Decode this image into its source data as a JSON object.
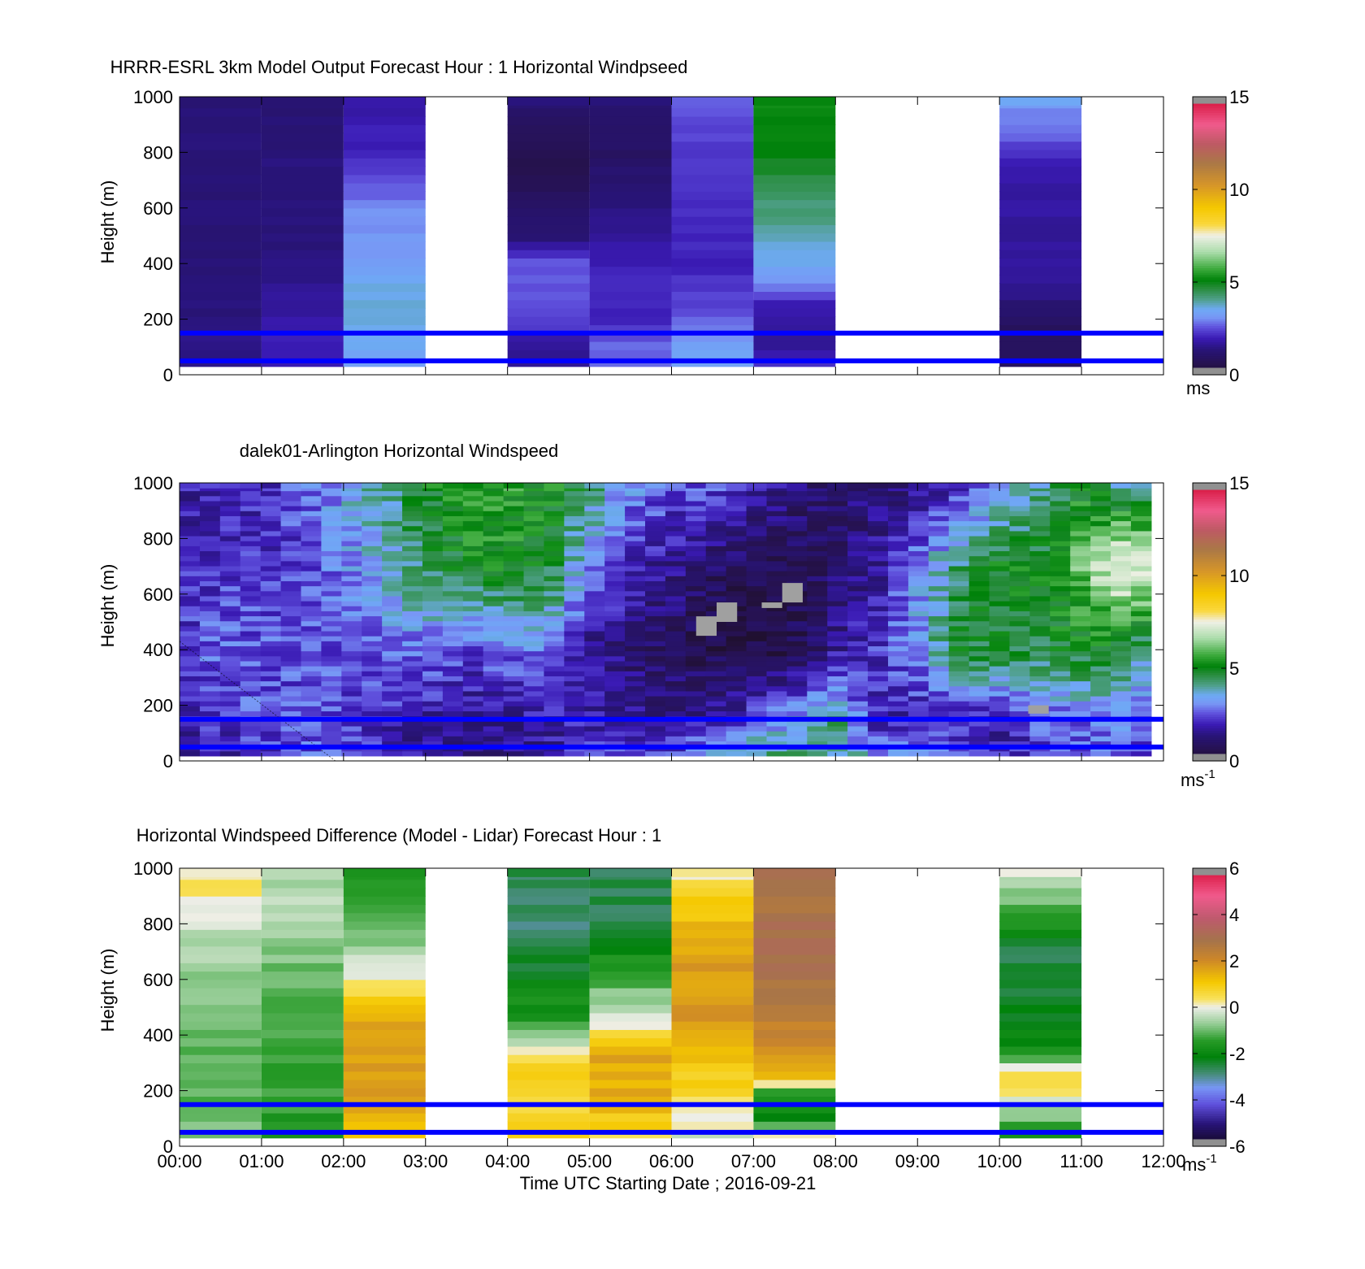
{
  "colors": {
    "overlay_lines": "#0000ff",
    "missing": "#a0a0a0"
  },
  "reference_heights_m": [
    50,
    150
  ],
  "x_axis": {
    "ticks": [
      "00:00",
      "01:00",
      "02:00",
      "03:00",
      "04:00",
      "05:00",
      "06:00",
      "07:00",
      "08:00",
      "09:00",
      "10:00",
      "11:00",
      "12:00"
    ],
    "label": "Time UTC  Starting Date ; 2016-09-21"
  },
  "chart_data": [
    {
      "type": "heatmap",
      "id": "model",
      "title": "HRRR-ESRL 3km Model Output   Forecast Hour : 1 Horizontal Windpseed",
      "ylabel": "Height (m)",
      "ylim": [
        0,
        1000
      ],
      "yticks": [
        "0",
        "200",
        "400",
        "600",
        "800",
        "1000"
      ],
      "xlim_hours": [
        0,
        12
      ],
      "colorbar": {
        "ticks": [
          "0",
          "5",
          "10",
          "15"
        ],
        "min": 0,
        "max": 15,
        "unit": "ms",
        "unit_sup": ""
      },
      "columns": [
        {
          "start": 0,
          "profile": [
            [
              0,
              1.2
            ],
            [
              50,
              1.5
            ],
            [
              150,
              1.4
            ],
            [
              300,
              1.3
            ],
            [
              1000,
              1.3
            ]
          ]
        },
        {
          "start": 1,
          "profile": [
            [
              0,
              1.8
            ],
            [
              50,
              2.0
            ],
            [
              200,
              1.8
            ],
            [
              400,
              1.4
            ],
            [
              1000,
              1.3
            ]
          ]
        },
        {
          "start": 2,
          "profile": [
            [
              0,
              2.5
            ],
            [
              50,
              3.4
            ],
            [
              300,
              3.7
            ],
            [
              400,
              3.2
            ],
            [
              600,
              3.0
            ],
            [
              800,
              2.0
            ],
            [
              1000,
              1.8
            ]
          ]
        },
        {
          "start": 4,
          "profile": [
            [
              0,
              1.5
            ],
            [
              100,
              1.6
            ],
            [
              200,
              2.5
            ],
            [
              400,
              2.6
            ],
            [
              500,
              1.3
            ],
            [
              700,
              0.6
            ],
            [
              900,
              0.8
            ],
            [
              1000,
              1.3
            ]
          ]
        },
        {
          "start": 5,
          "profile": [
            [
              0,
              2.6
            ],
            [
              100,
              2.8
            ],
            [
              200,
              2.0
            ],
            [
              350,
              2.2
            ],
            [
              500,
              1.6
            ],
            [
              800,
              1.0
            ],
            [
              1000,
              1.3
            ]
          ]
        },
        {
          "start": 6,
          "profile": [
            [
              0,
              3.2
            ],
            [
              100,
              3.4
            ],
            [
              200,
              2.6
            ],
            [
              400,
              2.0
            ],
            [
              800,
              2.3
            ],
            [
              1000,
              2.7
            ]
          ]
        },
        {
          "start": 7,
          "profile": [
            [
              0,
              2.6
            ],
            [
              100,
              1.6
            ],
            [
              250,
              1.9
            ],
            [
              350,
              3.2
            ],
            [
              450,
              3.7
            ],
            [
              600,
              4.2
            ],
            [
              800,
              5.0
            ],
            [
              1000,
              5.2
            ]
          ]
        },
        {
          "start": 10,
          "profile": [
            [
              0,
              0.8
            ],
            [
              200,
              0.9
            ],
            [
              300,
              1.6
            ],
            [
              750,
              1.8
            ],
            [
              850,
              2.6
            ],
            [
              950,
              3.0
            ],
            [
              1000,
              3.6
            ]
          ]
        }
      ]
    },
    {
      "type": "heatmap",
      "id": "lidar",
      "title": "dalek01-Arlington  Horizontal Windspeed",
      "ylabel": "Height (m)",
      "ylim": [
        0,
        1000
      ],
      "yticks": [
        "0",
        "200",
        "400",
        "600",
        "800",
        "1000"
      ],
      "xlim_hours": [
        0,
        12
      ],
      "colorbar": {
        "ticks": [
          "0",
          "5",
          "10",
          "15"
        ],
        "min": 0,
        "max": 15,
        "unit": "ms",
        "unit_sup": "-1"
      },
      "keyframes_hours": [
        0,
        0.5,
        1.0,
        1.5,
        2.0,
        2.5,
        3.0,
        3.5,
        4.0,
        4.5,
        5.0,
        5.5,
        6.0,
        6.5,
        7.0,
        7.5,
        8.0,
        8.5,
        9.0,
        9.5,
        10.0,
        10.5,
        11.0,
        11.5,
        11.85
      ],
      "keyframes": [
        [
          [
            0,
            1.5
          ],
          [
            150,
            2.0
          ],
          [
            400,
            2.2
          ],
          [
            700,
            2.0
          ],
          [
            1000,
            1.8
          ]
        ],
        [
          [
            0,
            1.8
          ],
          [
            150,
            2.2
          ],
          [
            400,
            2.8
          ],
          [
            700,
            2.2
          ],
          [
            1000,
            2.0
          ]
        ],
        [
          [
            0,
            2.0
          ],
          [
            150,
            2.6
          ],
          [
            400,
            2.6
          ],
          [
            700,
            2.2
          ],
          [
            1000,
            2.0
          ]
        ],
        [
          [
            0,
            2.6
          ],
          [
            150,
            2.5
          ],
          [
            400,
            2.4
          ],
          [
            700,
            2.4
          ],
          [
            1000,
            2.6
          ]
        ],
        [
          [
            0,
            2.8
          ],
          [
            150,
            2.4
          ],
          [
            400,
            2.6
          ],
          [
            700,
            3.0
          ],
          [
            1000,
            3.5
          ]
        ],
        [
          [
            0,
            2.2
          ],
          [
            150,
            2.0
          ],
          [
            400,
            2.8
          ],
          [
            700,
            3.6
          ],
          [
            1000,
            4.0
          ]
        ],
        [
          [
            0,
            1.4
          ],
          [
            150,
            1.8
          ],
          [
            400,
            2.8
          ],
          [
            700,
            4.5
          ],
          [
            1000,
            5.0
          ]
        ],
        [
          [
            0,
            1.2
          ],
          [
            150,
            1.6
          ],
          [
            400,
            2.4
          ],
          [
            700,
            5.0
          ],
          [
            1000,
            5.5
          ]
        ],
        [
          [
            0,
            1.3
          ],
          [
            150,
            1.6
          ],
          [
            400,
            2.8
          ],
          [
            700,
            5.2
          ],
          [
            1000,
            5.5
          ]
        ],
        [
          [
            0,
            1.6
          ],
          [
            150,
            1.8
          ],
          [
            400,
            3.0
          ],
          [
            700,
            5.0
          ],
          [
            1000,
            5.2
          ]
        ],
        [
          [
            0,
            2.4
          ],
          [
            150,
            2.0
          ],
          [
            400,
            1.6
          ],
          [
            700,
            2.8
          ],
          [
            1000,
            4.5
          ]
        ],
        [
          [
            0,
            2.6
          ],
          [
            150,
            1.6
          ],
          [
            400,
            1.2
          ],
          [
            700,
            2.0
          ],
          [
            1000,
            3.2
          ]
        ],
        [
          [
            0,
            2.6
          ],
          [
            150,
            1.4
          ],
          [
            400,
            0.8
          ],
          [
            700,
            1.6
          ],
          [
            1000,
            2.5
          ]
        ],
        [
          [
            0,
            4.5
          ],
          [
            150,
            1.6
          ],
          [
            400,
            0.6
          ],
          [
            700,
            1.0
          ],
          [
            1000,
            2.6
          ]
        ],
        [
          [
            0,
            4.8
          ],
          [
            150,
            2.4
          ],
          [
            400,
            0.5
          ],
          [
            700,
            0.7
          ],
          [
            1000,
            1.8
          ]
        ],
        [
          [
            0,
            4.2
          ],
          [
            150,
            3.4
          ],
          [
            400,
            0.6
          ],
          [
            700,
            0.8
          ],
          [
            1000,
            1.3
          ]
        ],
        [
          [
            0,
            4.0
          ],
          [
            150,
            4.2
          ],
          [
            400,
            1.6
          ],
          [
            700,
            1.0
          ],
          [
            1000,
            1.2
          ]
        ],
        [
          [
            0,
            3.2
          ],
          [
            150,
            2.0
          ],
          [
            400,
            2.2
          ],
          [
            700,
            1.6
          ],
          [
            1000,
            1.2
          ]
        ],
        [
          [
            0,
            3.6
          ],
          [
            150,
            1.8
          ],
          [
            400,
            3.2
          ],
          [
            700,
            3.0
          ],
          [
            1000,
            1.4
          ]
        ],
        [
          [
            0,
            2.4
          ],
          [
            150,
            2.0
          ],
          [
            400,
            4.8
          ],
          [
            700,
            4.2
          ],
          [
            1000,
            2.0
          ]
        ],
        [
          [
            0,
            2.0
          ],
          [
            150,
            1.8
          ],
          [
            400,
            4.8
          ],
          [
            700,
            5.0
          ],
          [
            1000,
            3.0
          ]
        ],
        [
          [
            0,
            2.2
          ],
          [
            150,
            2.6
          ],
          [
            400,
            4.6
          ],
          [
            700,
            5.0
          ],
          [
            1000,
            4.0
          ]
        ],
        [
          [
            0,
            2.4
          ],
          [
            150,
            2.8
          ],
          [
            400,
            5.0
          ],
          [
            700,
            6.0
          ],
          [
            1000,
            5.0
          ]
        ],
        [
          [
            0,
            2.6
          ],
          [
            150,
            3.0
          ],
          [
            400,
            4.6
          ],
          [
            700,
            7.8
          ],
          [
            1000,
            4.0
          ]
        ],
        [
          [
            0,
            2.4
          ],
          [
            150,
            2.6
          ],
          [
            400,
            4.0
          ],
          [
            700,
            7.0
          ],
          [
            1000,
            3.6
          ]
        ]
      ],
      "missing_blocks": [
        {
          "t0": 6.3,
          "t1": 6.55,
          "z0": 450,
          "z1": 520
        },
        {
          "t0": 6.55,
          "t1": 6.8,
          "z0": 500,
          "z1": 570
        },
        {
          "t0": 7.1,
          "t1": 7.35,
          "z0": 550,
          "z1": 570
        },
        {
          "t0": 7.35,
          "t1": 7.6,
          "z0": 570,
          "z1": 640
        },
        {
          "t0": 10.35,
          "t1": 10.6,
          "z0": 170,
          "z1": 200
        }
      ]
    },
    {
      "type": "heatmap",
      "id": "difference",
      "title": "Horizontal Windspeed Difference (Model - Lidar) Forecast Hour : 1",
      "ylabel": "Height (m)",
      "ylim": [
        0,
        1000
      ],
      "yticks": [
        "0",
        "200",
        "400",
        "600",
        "800",
        "1000"
      ],
      "xlim_hours": [
        0,
        12
      ],
      "colorbar": {
        "ticks": [
          "-6",
          "-4",
          "-2",
          "0",
          "2",
          "4",
          "6"
        ],
        "min": -6,
        "max": 6,
        "unit": "ms",
        "unit_sup": "-1"
      },
      "columns": [
        {
          "start": 0,
          "profile": [
            [
              0,
              -0.8
            ],
            [
              200,
              -1.2
            ],
            [
              500,
              -0.9
            ],
            [
              800,
              -0.3
            ],
            [
              950,
              0.5
            ],
            [
              1000,
              0.2
            ]
          ]
        },
        {
          "start": 1,
          "profile": [
            [
              0,
              -1.6
            ],
            [
              200,
              -1.4
            ],
            [
              500,
              -1.2
            ],
            [
              800,
              -0.6
            ],
            [
              1000,
              -0.4
            ]
          ]
        },
        {
          "start": 2,
          "profile": [
            [
              0,
              0.8
            ],
            [
              150,
              1.6
            ],
            [
              450,
              1.6
            ],
            [
              550,
              0.5
            ],
            [
              650,
              -0.3
            ],
            [
              800,
              -1.0
            ],
            [
              1000,
              -1.6
            ]
          ]
        },
        {
          "start": 4,
          "profile": [
            [
              0,
              1.0
            ],
            [
              150,
              0.4
            ],
            [
              250,
              1.2
            ],
            [
              330,
              0.2
            ],
            [
              450,
              -1.5
            ],
            [
              700,
              -2.6
            ],
            [
              800,
              -2.9
            ],
            [
              1000,
              -2.6
            ]
          ]
        },
        {
          "start": 5,
          "profile": [
            [
              0,
              0.2
            ],
            [
              150,
              1.4
            ],
            [
              350,
              1.6
            ],
            [
              450,
              -0.2
            ],
            [
              600,
              -1.2
            ],
            [
              800,
              -2.6
            ],
            [
              1000,
              -2.6
            ]
          ]
        },
        {
          "start": 6,
          "profile": [
            [
              0,
              -0.4
            ],
            [
              150,
              0.4
            ],
            [
              450,
              1.8
            ],
            [
              700,
              1.6
            ],
            [
              900,
              0.8
            ],
            [
              1000,
              0.0
            ]
          ]
        },
        {
          "start": 7,
          "profile": [
            [
              0,
              1.6
            ],
            [
              100,
              -2.0
            ],
            [
              200,
              -1.2
            ],
            [
              250,
              1.5
            ],
            [
              450,
              2.3
            ],
            [
              650,
              3.0
            ],
            [
              1000,
              2.8
            ]
          ]
        },
        {
          "start": 10,
          "profile": [
            [
              0,
              -2.2
            ],
            [
              150,
              -0.4
            ],
            [
              250,
              0.8
            ],
            [
              350,
              -2.0
            ],
            [
              700,
              -2.6
            ],
            [
              900,
              -0.8
            ],
            [
              1000,
              -0.2
            ]
          ]
        }
      ]
    }
  ]
}
